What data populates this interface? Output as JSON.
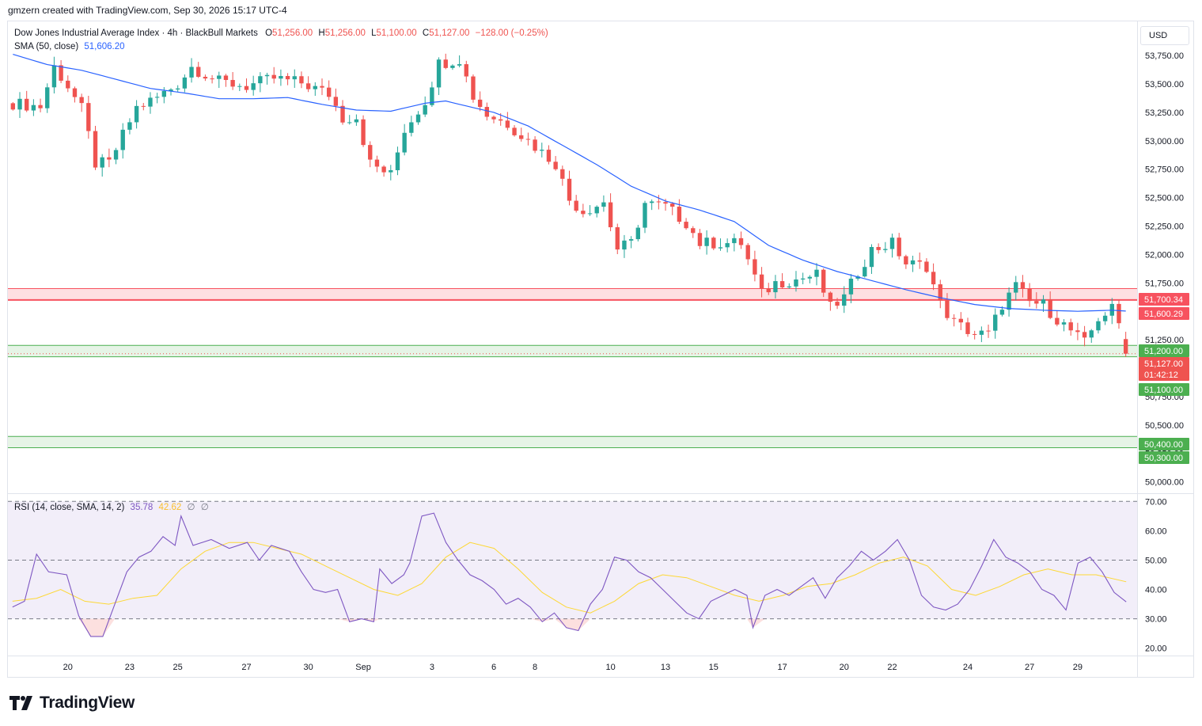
{
  "header": {
    "caption": "gmzern created with TradingView.com, Sep 30, 2026 15:17 UTC-4"
  },
  "legend": {
    "symbol": "Dow Jones Industrial Average Index · 4h · BlackBull Markets",
    "open_label": "O",
    "open": "51,256.00",
    "high_label": "H",
    "high": "51,256.00",
    "low_label": "L",
    "low": "51,100.00",
    "close_label": "C",
    "close": "51,127.00",
    "change": "−128.00 (−0.25%)",
    "sma_label": "SMA (50, close)",
    "sma_value": "51,606.20"
  },
  "rsi_legend": {
    "label": "RSI (14, close, SMA, 14, 2)",
    "rsi": "35.78",
    "rsi_ma": "42.62",
    "extra1": "∅",
    "extra2": "∅"
  },
  "currency": "USD",
  "brand": {
    "name": "TradingView",
    "icon": "tradingview-logo-icon"
  },
  "colors": {
    "up": "#26a69a",
    "down": "#ef5350",
    "sma": "#2962ff",
    "rsi": "#7e57c2",
    "rsi_ma": "#fdd835",
    "resistance_zone": "#f7525f",
    "support_zone": "#4caf50"
  },
  "chart_data": [
    {
      "type": "candlestick",
      "title": "Dow Jones Industrial Average Index · 4h · BlackBull Markets",
      "y_axis": {
        "ticks": [
          50000,
          50250,
          50500,
          50750,
          51000,
          51250,
          51500,
          51750,
          52000,
          52250,
          52500,
          52750,
          53000,
          53250,
          53500,
          53750
        ],
        "range": [
          49900,
          54050
        ],
        "side": "right"
      },
      "x_axis": {
        "ticks": [
          "20",
          "23",
          "25",
          "27",
          "30",
          "Sep",
          "3",
          "6",
          "8",
          "10",
          "13",
          "15",
          "17",
          "20",
          "22",
          "24",
          "27",
          "29"
        ],
        "tick_bars": [
          8,
          17,
          24,
          34,
          43,
          51,
          61,
          70,
          76,
          87,
          95,
          102,
          112,
          121,
          128,
          139,
          148,
          155
        ]
      },
      "bars": 163,
      "price_path": [
        [
          0,
          53330
        ],
        [
          4,
          53300
        ],
        [
          6,
          53650
        ],
        [
          8,
          53480
        ],
        [
          10,
          53280
        ],
        [
          11,
          53050
        ],
        [
          12,
          52800
        ],
        [
          14,
          52800
        ],
        [
          16,
          53050
        ],
        [
          18,
          53290
        ],
        [
          21,
          53380
        ],
        [
          24,
          53500
        ],
        [
          26,
          53650
        ],
        [
          30,
          53520
        ],
        [
          34,
          53480
        ],
        [
          38,
          53550
        ],
        [
          42,
          53510
        ],
        [
          46,
          53410
        ],
        [
          48,
          53200
        ],
        [
          50,
          53210
        ],
        [
          52,
          52800
        ],
        [
          55,
          52700
        ],
        [
          57,
          53100
        ],
        [
          60,
          53350
        ],
        [
          62,
          53680
        ],
        [
          65,
          53720
        ],
        [
          67,
          53390
        ],
        [
          69,
          53230
        ],
        [
          72,
          53150
        ],
        [
          76,
          52950
        ],
        [
          79,
          52800
        ],
        [
          81,
          52480
        ],
        [
          83,
          52380
        ],
        [
          86,
          52460
        ],
        [
          88,
          52050
        ],
        [
          90,
          52100
        ],
        [
          92,
          52450
        ],
        [
          95,
          52420
        ],
        [
          98,
          52280
        ],
        [
          100,
          52100
        ],
        [
          103,
          52100
        ],
        [
          106,
          52100
        ],
        [
          109,
          51650
        ],
        [
          111,
          51750
        ],
        [
          114,
          51780
        ],
        [
          117,
          51820
        ],
        [
          119,
          51530
        ],
        [
          121,
          51620
        ],
        [
          123,
          51850
        ],
        [
          125,
          52040
        ],
        [
          128,
          52100
        ],
        [
          130,
          51920
        ],
        [
          133,
          51900
        ],
        [
          135,
          51560
        ],
        [
          137,
          51400
        ],
        [
          140,
          51300
        ],
        [
          142,
          51300
        ],
        [
          144,
          51560
        ],
        [
          146,
          51720
        ],
        [
          148,
          51580
        ],
        [
          150,
          51560
        ],
        [
          152,
          51430
        ],
        [
          154,
          51330
        ],
        [
          156,
          51220
        ],
        [
          158,
          51440
        ],
        [
          160,
          51520
        ],
        [
          161,
          51390
        ],
        [
          162,
          51127
        ]
      ],
      "sma": {
        "name": "SMA (50, close)",
        "last": 51606.2,
        "path": [
          [
            0,
            53760
          ],
          [
            5,
            53670
          ],
          [
            10,
            53620
          ],
          [
            15,
            53540
          ],
          [
            20,
            53460
          ],
          [
            25,
            53420
          ],
          [
            30,
            53370
          ],
          [
            35,
            53370
          ],
          [
            40,
            53380
          ],
          [
            45,
            53320
          ],
          [
            50,
            53270
          ],
          [
            55,
            53260
          ],
          [
            60,
            53330
          ],
          [
            63,
            53350
          ],
          [
            65,
            53320
          ],
          [
            70,
            53250
          ],
          [
            75,
            53130
          ],
          [
            80,
            52960
          ],
          [
            85,
            52790
          ],
          [
            90,
            52600
          ],
          [
            95,
            52470
          ],
          [
            100,
            52390
          ],
          [
            105,
            52290
          ],
          [
            110,
            52080
          ],
          [
            115,
            51950
          ],
          [
            120,
            51850
          ],
          [
            125,
            51770
          ],
          [
            130,
            51690
          ],
          [
            135,
            51620
          ],
          [
            140,
            51560
          ],
          [
            145,
            51525
          ],
          [
            150,
            51510
          ],
          [
            155,
            51500
          ],
          [
            160,
            51510
          ],
          [
            162,
            51502
          ]
        ]
      },
      "zones": [
        {
          "kind": "resistance",
          "from": 51600.29,
          "to": 51700.34
        },
        {
          "kind": "support",
          "from": 51100.0,
          "to": 51200.0
        },
        {
          "kind": "support",
          "from": 50300.0,
          "to": 50400.0
        }
      ],
      "price_labels": [
        {
          "text": "51,700.34",
          "value": 51700.34,
          "kind": "resistance"
        },
        {
          "text": "51,600.29",
          "value": 51600.29,
          "kind": "resistance"
        },
        {
          "text": "51,200.00",
          "value": 51200.0,
          "kind": "support"
        },
        {
          "text": "51,127.00",
          "sub": "01:42:12",
          "value": 51127.0,
          "kind": "last"
        },
        {
          "text": "51,100.00",
          "value": 51100.0,
          "kind": "support"
        },
        {
          "text": "50,400.00",
          "value": 50400.0,
          "kind": "support"
        },
        {
          "text": "50,300.00",
          "value": 50300.0,
          "kind": "support"
        }
      ]
    },
    {
      "type": "line",
      "title": "RSI (14, close, SMA, 14, 2)",
      "y_axis": {
        "ticks": [
          20,
          30,
          40,
          50,
          60,
          70
        ],
        "range": [
          17.5,
          72.5
        ],
        "band": [
          30,
          70
        ],
        "mid": 50
      },
      "series": [
        {
          "name": "RSI",
          "last": 35.78,
          "points": [
            [
              0,
              34
            ],
            [
              2,
              36
            ],
            [
              4,
              52
            ],
            [
              6,
              46
            ],
            [
              9,
              45
            ],
            [
              11,
              31
            ],
            [
              13,
              24
            ],
            [
              15,
              24
            ],
            [
              17,
              35
            ],
            [
              19,
              46
            ],
            [
              21,
              51
            ],
            [
              23,
              53
            ],
            [
              25,
              58
            ],
            [
              27,
              55
            ],
            [
              28,
              65
            ],
            [
              30,
              55
            ],
            [
              33,
              57
            ],
            [
              36,
              54
            ],
            [
              39,
              56
            ],
            [
              41,
              50
            ],
            [
              43,
              55
            ],
            [
              46,
              53
            ],
            [
              48,
              46
            ],
            [
              50,
              40
            ],
            [
              52,
              39
            ],
            [
              54,
              40
            ],
            [
              56,
              29
            ],
            [
              58,
              30
            ],
            [
              60,
              29
            ],
            [
              61,
              47
            ],
            [
              63,
              42
            ],
            [
              65,
              45
            ],
            [
              66,
              49
            ],
            [
              68,
              65
            ],
            [
              70,
              66
            ],
            [
              72,
              56
            ],
            [
              74,
              50
            ],
            [
              76,
              45
            ],
            [
              78,
              43
            ],
            [
              80,
              40
            ],
            [
              82,
              35
            ],
            [
              84,
              37
            ],
            [
              86,
              34
            ],
            [
              88,
              29
            ],
            [
              90,
              32
            ],
            [
              92,
              27
            ],
            [
              94,
              26
            ],
            [
              96,
              35
            ],
            [
              98,
              40
            ],
            [
              100,
              51
            ],
            [
              102,
              50
            ],
            [
              104,
              46
            ],
            [
              106,
              44
            ],
            [
              108,
              40
            ],
            [
              110,
              36
            ],
            [
              112,
              32
            ],
            [
              114,
              30
            ],
            [
              116,
              36
            ],
            [
              118,
              38
            ],
            [
              120,
              40
            ],
            [
              122,
              38
            ],
            [
              123,
              27
            ],
            [
              125,
              38
            ],
            [
              127,
              40
            ],
            [
              129,
              38
            ],
            [
              131,
              41
            ],
            [
              133,
              44
            ],
            [
              135,
              37
            ],
            [
              137,
              44
            ],
            [
              139,
              48
            ],
            [
              141,
              53
            ],
            [
              143,
              50
            ],
            [
              145,
              53
            ],
            [
              147,
              57
            ],
            [
              149,
              50
            ],
            [
              151,
              38
            ],
            [
              153,
              34
            ],
            [
              155,
              33
            ],
            [
              157,
              35
            ],
            [
              159,
              40
            ],
            [
              161,
              48
            ],
            [
              163,
              57
            ],
            [
              165,
              51
            ],
            [
              167,
              49
            ],
            [
              169,
              46
            ],
            [
              171,
              40
            ],
            [
              173,
              38
            ],
            [
              175,
              33
            ],
            [
              177,
              49
            ],
            [
              179,
              51
            ],
            [
              181,
              46
            ],
            [
              183,
              39
            ],
            [
              185,
              35.78
            ]
          ]
        },
        {
          "name": "RSI-based MA",
          "last": 42.62,
          "points": [
            [
              0,
              36
            ],
            [
              4,
              37
            ],
            [
              8,
              40
            ],
            [
              12,
              36
            ],
            [
              16,
              35
            ],
            [
              20,
              37
            ],
            [
              24,
              38
            ],
            [
              28,
              47
            ],
            [
              32,
              53
            ],
            [
              36,
              56
            ],
            [
              40,
              56
            ],
            [
              44,
              54
            ],
            [
              48,
              52
            ],
            [
              52,
              48
            ],
            [
              56,
              44
            ],
            [
              60,
              40
            ],
            [
              64,
              38
            ],
            [
              68,
              42
            ],
            [
              72,
              51
            ],
            [
              76,
              56
            ],
            [
              80,
              54
            ],
            [
              84,
              47
            ],
            [
              88,
              39
            ],
            [
              92,
              34
            ],
            [
              96,
              32
            ],
            [
              100,
              36
            ],
            [
              104,
              42
            ],
            [
              108,
              45
            ],
            [
              112,
              44
            ],
            [
              116,
              41
            ],
            [
              120,
              38
            ],
            [
              124,
              36
            ],
            [
              128,
              38
            ],
            [
              132,
              41
            ],
            [
              136,
              42
            ],
            [
              140,
              45
            ],
            [
              144,
              49
            ],
            [
              148,
              51
            ],
            [
              152,
              48
            ],
            [
              156,
              40
            ],
            [
              160,
              38
            ],
            [
              164,
              41
            ],
            [
              168,
              45
            ],
            [
              172,
              47
            ],
            [
              176,
              45
            ],
            [
              180,
              45
            ],
            [
              185,
              42.62
            ]
          ]
        }
      ]
    }
  ]
}
